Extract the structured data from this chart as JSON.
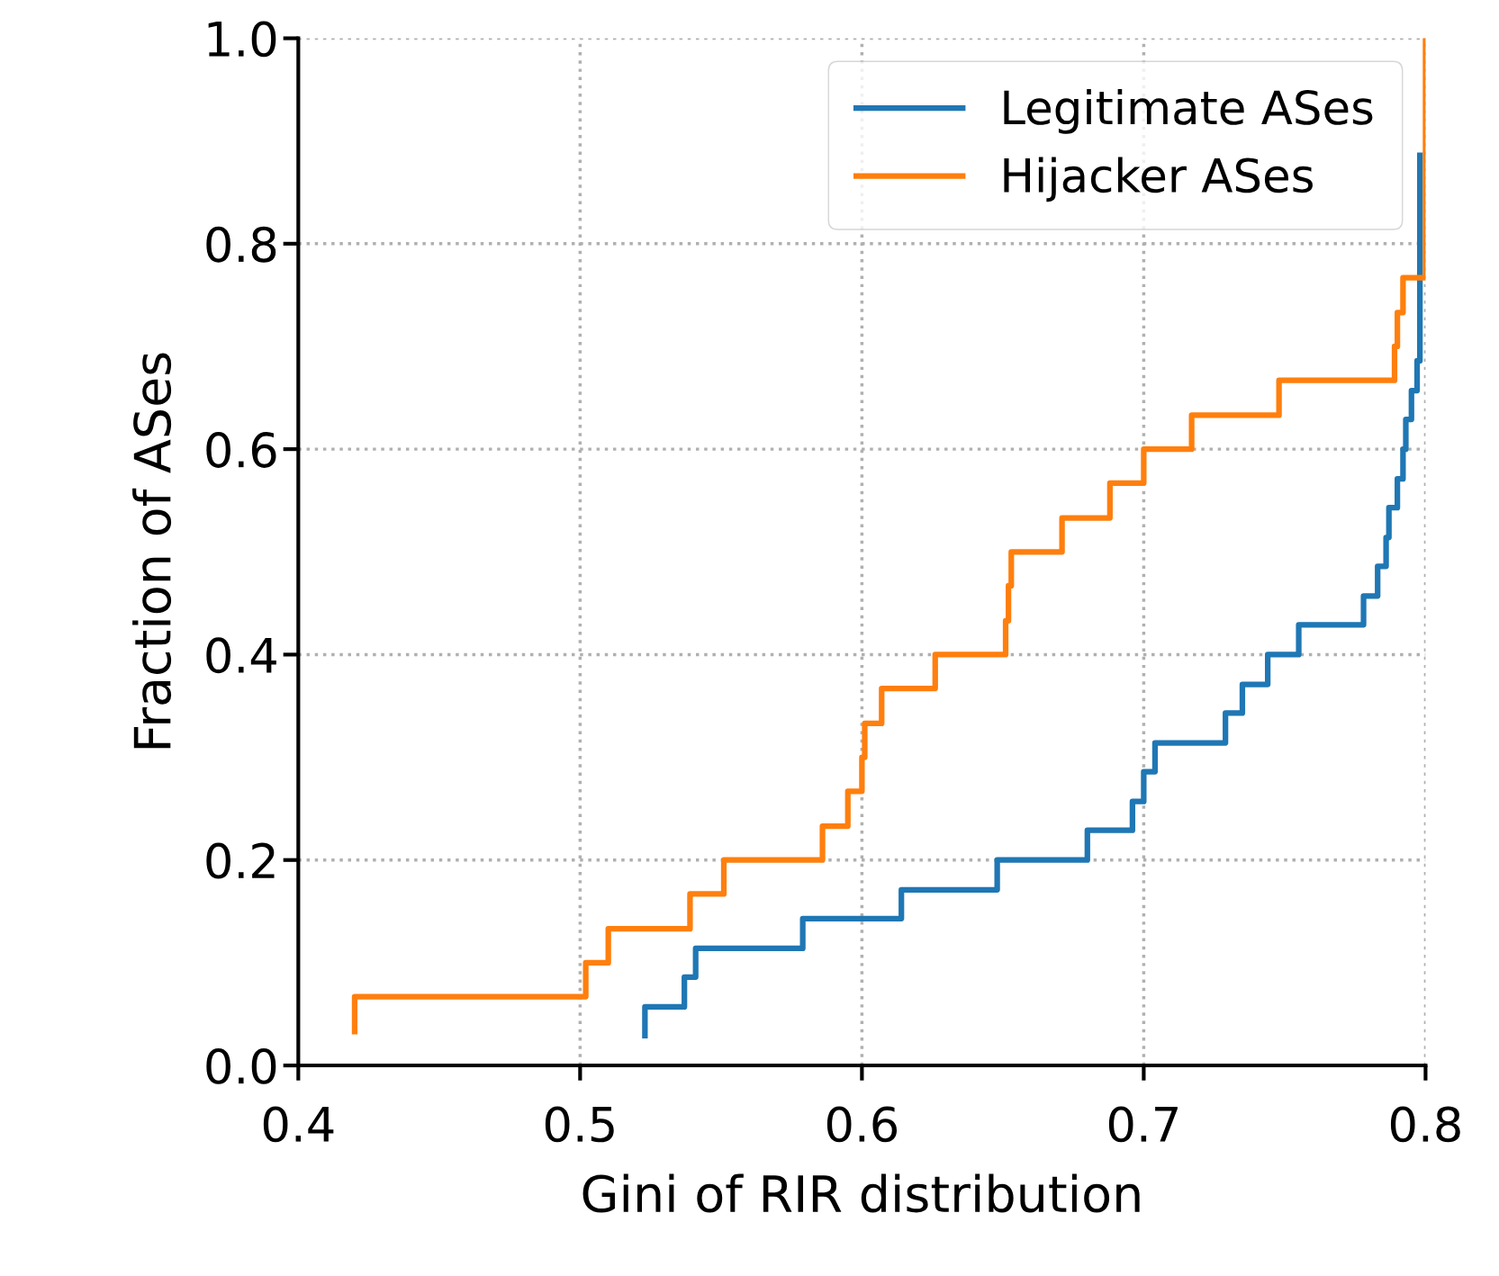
{
  "chart_data": {
    "type": "step",
    "xlabel": "Gini of RIR distribution",
    "ylabel": "Fraction of ASes",
    "xlim": [
      0.4,
      0.8
    ],
    "xticks": [
      0.4,
      0.5,
      0.6,
      0.7,
      0.8
    ],
    "ylim": [
      0.0,
      1.0
    ],
    "yticks": [
      {
        "value": 0,
        "label": "0.0"
      },
      0.2,
      0.4,
      0.6,
      0.8,
      {
        "value": 1,
        "label": "1.0"
      }
    ],
    "grid": true,
    "legend": "top right",
    "line_style": "solid",
    "marker": "none",
    "series": [
      {
        "name": "Legitimate ASes",
        "color": "#1f77b4",
        "x": [
          0.523,
          0.523,
          0.537,
          0.541,
          0.579,
          0.614,
          0.648,
          0.68,
          0.696,
          0.7,
          0.704,
          0.729,
          0.735,
          0.744,
          0.755,
          0.778,
          0.783,
          0.786,
          0.787,
          0.79,
          0.792,
          0.793,
          0.795,
          0.797,
          0.798
        ],
        "values": [
          0.029,
          0.057,
          0.086,
          0.114,
          0.143,
          0.171,
          0.2,
          0.229,
          0.257,
          0.286,
          0.314,
          0.343,
          0.371,
          0.4,
          0.429,
          0.457,
          0.486,
          0.514,
          0.543,
          0.571,
          0.6,
          0.629,
          0.657,
          0.686,
          0.886
        ]
      },
      {
        "name": "Hijacker ASes",
        "color": "#ff7f0e",
        "x": [
          0.42,
          0.42,
          0.502,
          0.51,
          0.539,
          0.551,
          0.586,
          0.595,
          0.6,
          0.601,
          0.607,
          0.626,
          0.651,
          0.652,
          0.653,
          0.671,
          0.688,
          0.7,
          0.717,
          0.748,
          0.789,
          0.79,
          0.792,
          0.8
        ],
        "values": [
          0.033,
          0.067,
          0.1,
          0.133,
          0.167,
          0.2,
          0.233,
          0.267,
          0.3,
          0.333,
          0.367,
          0.4,
          0.433,
          0.467,
          0.5,
          0.533,
          0.567,
          0.6,
          0.633,
          0.667,
          0.7,
          0.733,
          0.767,
          1.0
        ]
      }
    ]
  }
}
